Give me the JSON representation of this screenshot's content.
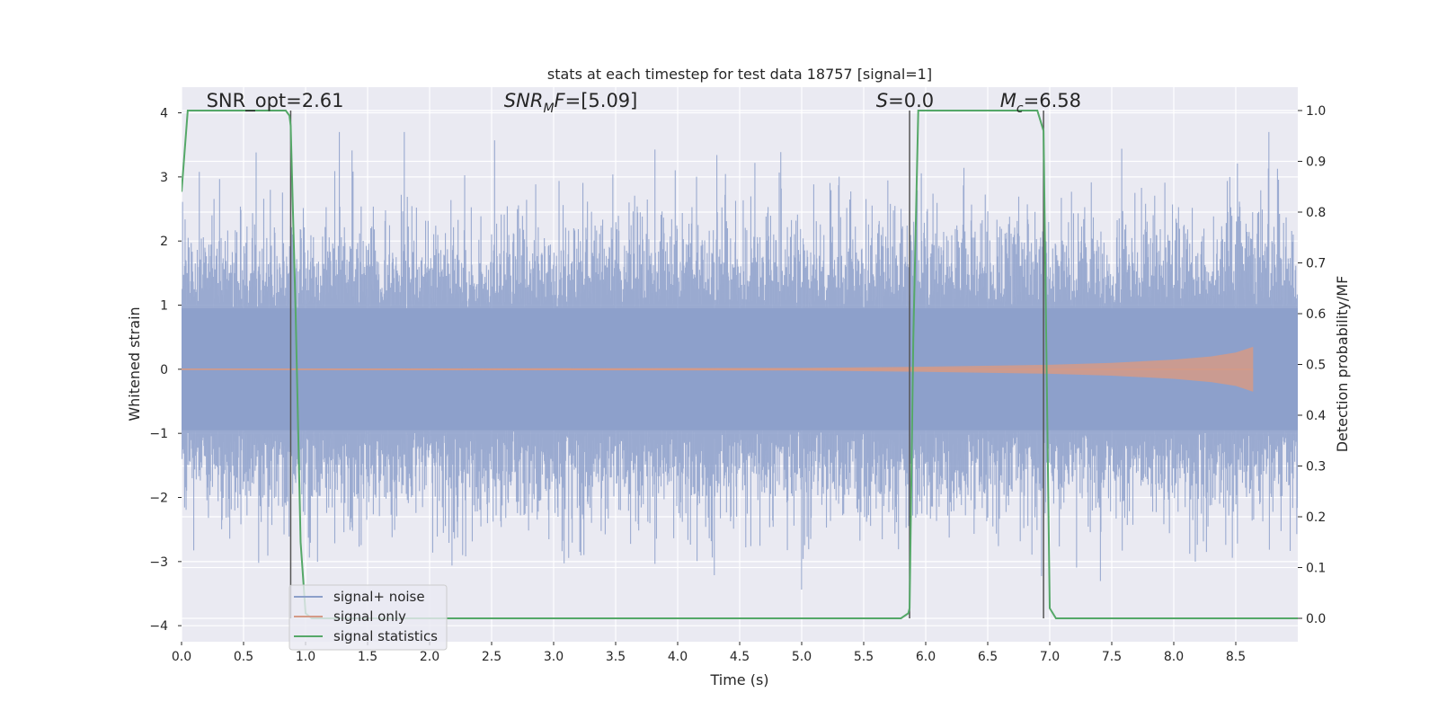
{
  "chart_data": {
    "type": "line",
    "title": "stats at each timestep for test data 18757 [signal=1]",
    "xlabel": "Time (s)",
    "ylabel": "Whitened strain",
    "y2label": "Detection probability/MF",
    "xlim": [
      0.0,
      9.0
    ],
    "ylim": [
      -4.25,
      4.4
    ],
    "y2lim": [
      -0.046,
      1.046
    ],
    "xticks": [
      "0.0",
      "0.5",
      "1.0",
      "1.5",
      "2.0",
      "2.5",
      "3.0",
      "3.5",
      "4.0",
      "4.5",
      "5.0",
      "5.5",
      "6.0",
      "6.5",
      "7.0",
      "7.5",
      "8.0",
      "8.5"
    ],
    "xtick_values": [
      0.0,
      0.5,
      1.0,
      1.5,
      2.0,
      2.5,
      3.0,
      3.5,
      4.0,
      4.5,
      5.0,
      5.5,
      6.0,
      6.5,
      7.0,
      7.5,
      8.0,
      8.5
    ],
    "yticks": [
      "−4",
      "−3",
      "−2",
      "−1",
      "0",
      "1",
      "2",
      "3",
      "4"
    ],
    "ytick_values": [
      -4,
      -3,
      -2,
      -1,
      0,
      1,
      2,
      3,
      4
    ],
    "y2ticks": [
      "0.0",
      "0.1",
      "0.2",
      "0.3",
      "0.4",
      "0.5",
      "0.6",
      "0.7",
      "0.8",
      "0.9",
      "1.0"
    ],
    "y2tick_values": [
      0.0,
      0.1,
      0.2,
      0.3,
      0.4,
      0.5,
      0.6,
      0.7,
      0.8,
      0.9,
      1.0
    ],
    "grid": true,
    "legend_position": "lower-left",
    "annotations": [
      {
        "id": "snr-opt",
        "text": "SNR_opt=2.61",
        "x": 0.2,
        "y": 4.12
      },
      {
        "id": "snr-mf",
        "text": "SNR_MF=[5.09]",
        "x": 2.6,
        "y": 4.12
      },
      {
        "id": "s-value",
        "text": "S=0.0",
        "x": 5.6,
        "y": 4.12
      },
      {
        "id": "mc-value",
        "text": "M_c=6.58",
        "x": 6.6,
        "y": 4.12
      }
    ],
    "vlines": [
      0.88,
      5.87,
      6.95
    ],
    "series": [
      {
        "name": "signal+ noise",
        "color": "#8c9fca",
        "axis": "left",
        "description_stats": {
          "duration_s": 9.0,
          "typical_amplitude": 1.7,
          "peak_amplitude": 3.7
        }
      },
      {
        "name": "signal only",
        "color": "#d59a87",
        "axis": "left",
        "envelope": {
          "x": [
            0.0,
            5.0,
            6.0,
            7.0,
            7.5,
            8.0,
            8.3,
            8.5,
            8.64
          ],
          "amplitude": [
            0.01,
            0.02,
            0.04,
            0.07,
            0.1,
            0.15,
            0.2,
            0.26,
            0.35
          ]
        }
      },
      {
        "name": "signal statistics",
        "color": "#55a868",
        "axis": "right",
        "x": [
          0.0,
          0.05,
          0.1,
          0.84,
          0.87,
          0.88,
          0.92,
          0.96,
          1.0,
          1.05,
          5.8,
          5.86,
          5.87,
          5.9,
          5.94,
          6.0,
          6.85,
          6.9,
          6.95,
          7.0,
          7.05,
          7.1,
          9.0
        ],
        "y": [
          0.84,
          1.0,
          1.0,
          1.0,
          0.99,
          0.97,
          0.6,
          0.15,
          0.01,
          0.0,
          0.0,
          0.01,
          0.02,
          0.55,
          1.0,
          1.0,
          1.0,
          1.0,
          0.96,
          0.02,
          0.0,
          0.0,
          0.0
        ]
      }
    ]
  },
  "legend": {
    "items": [
      {
        "label": "signal+ noise",
        "color": "#8c9fca"
      },
      {
        "label": "signal only",
        "color": "#d59a87"
      },
      {
        "label": "signal statistics",
        "color": "#55a868"
      }
    ]
  }
}
